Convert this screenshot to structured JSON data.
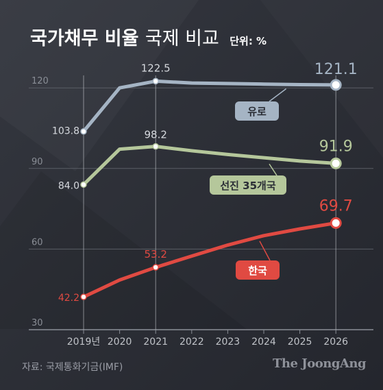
{
  "title": {
    "main": "국가채무 비율",
    "sub": "국제 비교",
    "unit": "단위: %"
  },
  "source": "자료: 국제통화기금(IMF)",
  "brand": "The JoongAng",
  "colors": {
    "background": "#2b2e36",
    "euro": "#a5b4c4",
    "advanced": "#b5c79b",
    "korea": "#e04a42",
    "grid": "#5a5e66",
    "axis_text": "#c0c3c8"
  },
  "chart_data": {
    "type": "line",
    "x": [
      2019,
      2020,
      2021,
      2022,
      2023,
      2024,
      2025,
      2026
    ],
    "x_tick_labels": [
      "2019년",
      "2020",
      "2021",
      "2022",
      "2023",
      "2024",
      "2025",
      "2026"
    ],
    "y_ticks": [
      30,
      60,
      90,
      120
    ],
    "ylim": [
      30,
      130
    ],
    "grid": true,
    "series": [
      {
        "name": "유로",
        "color": "#a5b4c4",
        "values": [
          103.8,
          120.0,
          122.5,
          121.8,
          121.6,
          121.4,
          121.2,
          121.1
        ],
        "point_labels": {
          "2019": "103.8",
          "2021": "122.5",
          "2026": "121.1"
        }
      },
      {
        "name": "선진 35개국",
        "color": "#b5c79b",
        "values": [
          84.0,
          97.2,
          98.2,
          96.6,
          95.2,
          94.0,
          92.8,
          91.9
        ],
        "point_labels": {
          "2019": "84.0",
          "2021": "98.2",
          "2026": "91.9"
        }
      },
      {
        "name": "한국",
        "color": "#e04a42",
        "values": [
          42.2,
          48.5,
          53.2,
          57.4,
          61.5,
          65.0,
          67.5,
          69.7
        ],
        "point_labels": {
          "2019": "42.2",
          "2021": "53.2",
          "2026": "69.7"
        }
      }
    ]
  }
}
